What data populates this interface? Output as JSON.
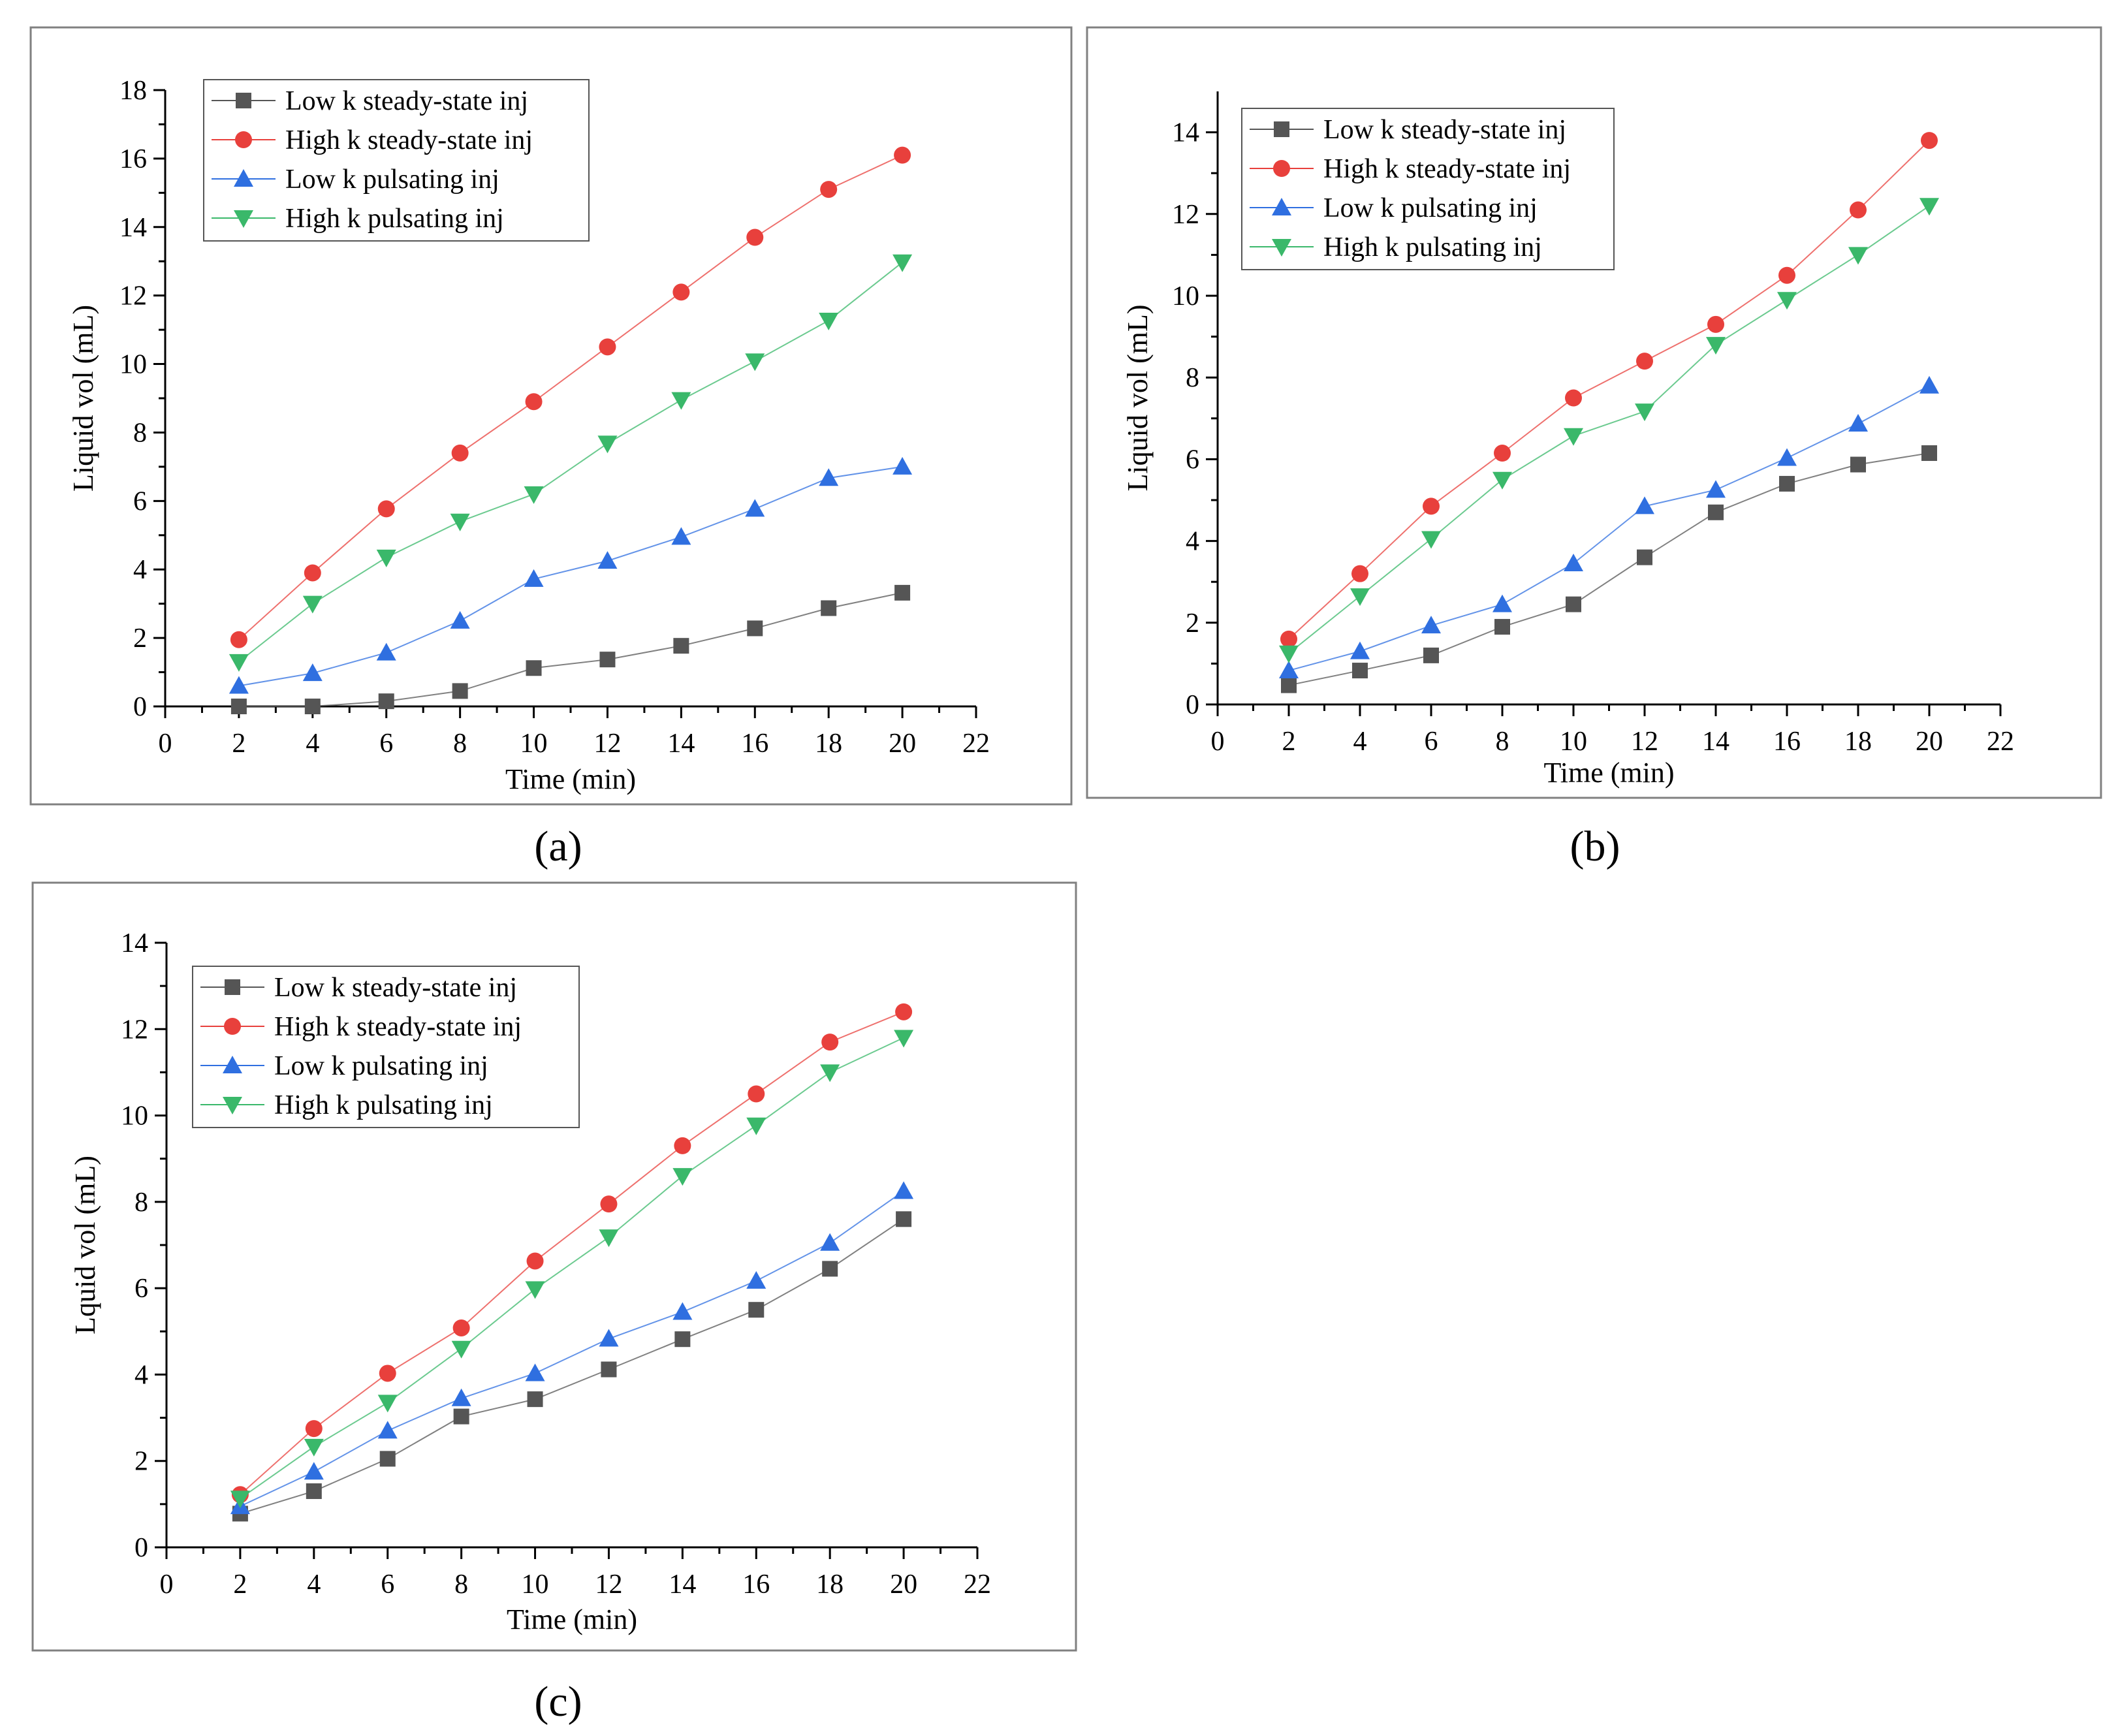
{
  "figure_labels": {
    "a": "(a)",
    "b": "(b)",
    "c": "(c)"
  },
  "colors": {
    "low_ss": "#555555",
    "high_ss": "#e8403c",
    "low_p": "#2f6fe0",
    "high_p": "#3ab86a"
  },
  "chart_data": [
    {
      "id": "a",
      "type": "line",
      "xlabel": "Time (min)",
      "ylabel": "Liquid vol (mL)",
      "xlim": [
        0,
        22
      ],
      "ylim": [
        0,
        18
      ],
      "xticks": [
        0,
        2,
        4,
        6,
        8,
        10,
        12,
        14,
        16,
        18,
        20,
        22
      ],
      "yticks": [
        0,
        2,
        4,
        6,
        8,
        10,
        12,
        14,
        16,
        18
      ],
      "x": [
        2,
        4,
        6,
        8,
        10,
        12,
        14,
        16,
        18,
        20
      ],
      "series": [
        {
          "name": "Low k steady-state inj",
          "marker": "square",
          "color": "#555555",
          "values": [
            0,
            0,
            0.15,
            0.45,
            1.12,
            1.37,
            1.77,
            2.28,
            2.87,
            3.32
          ]
        },
        {
          "name": "High k steady-state inj",
          "marker": "circle",
          "color": "#e8403c",
          "values": [
            1.95,
            3.9,
            5.77,
            7.4,
            8.9,
            10.5,
            12.1,
            13.7,
            15.1,
            16.1
          ]
        },
        {
          "name": "Low k pulsating inj",
          "marker": "triangle-up",
          "color": "#2f6fe0",
          "values": [
            0.6,
            0.97,
            1.57,
            2.5,
            3.72,
            4.25,
            4.95,
            5.77,
            6.67,
            7.0
          ]
        },
        {
          "name": "High k pulsating inj",
          "marker": "triangle-down",
          "color": "#3ab86a",
          "values": [
            1.3,
            3.0,
            4.35,
            5.4,
            6.2,
            7.68,
            8.95,
            10.08,
            11.27,
            12.97
          ]
        }
      ]
    },
    {
      "id": "b",
      "type": "line",
      "xlabel": "Time (min)",
      "ylabel": "Liquid vol (mL)",
      "xlim": [
        0,
        22
      ],
      "ylim": [
        0,
        15
      ],
      "xticks": [
        0,
        2,
        4,
        6,
        8,
        10,
        12,
        14,
        16,
        18,
        20,
        22
      ],
      "yticks": [
        0,
        2,
        4,
        6,
        8,
        10,
        12,
        14
      ],
      "x": [
        2,
        4,
        6,
        8,
        10,
        12,
        14,
        16,
        18,
        20
      ],
      "series": [
        {
          "name": "Low k steady-state inj",
          "marker": "square",
          "color": "#555555",
          "values": [
            0.47,
            0.83,
            1.2,
            1.9,
            2.45,
            3.6,
            4.7,
            5.4,
            5.87,
            6.15
          ]
        },
        {
          "name": "High k steady-state inj",
          "marker": "circle",
          "color": "#e8403c",
          "values": [
            1.6,
            3.2,
            4.85,
            6.15,
            7.5,
            8.4,
            9.3,
            10.5,
            12.1,
            13.8
          ]
        },
        {
          "name": "Low k pulsating inj",
          "marker": "triangle-up",
          "color": "#2f6fe0",
          "values": [
            0.83,
            1.3,
            1.93,
            2.45,
            3.45,
            4.85,
            5.25,
            6.03,
            6.87,
            7.8
          ]
        },
        {
          "name": "High k pulsating inj",
          "marker": "triangle-down",
          "color": "#3ab86a",
          "values": [
            1.25,
            2.65,
            4.05,
            5.5,
            6.57,
            7.17,
            8.8,
            9.9,
            11.0,
            12.2
          ]
        }
      ]
    },
    {
      "id": "c",
      "type": "line",
      "xlabel": "Time (min)",
      "ylabel": "Lquid vol (mL)",
      "xlim": [
        0,
        22
      ],
      "ylim": [
        0,
        14
      ],
      "xticks": [
        0,
        2,
        4,
        6,
        8,
        10,
        12,
        14,
        16,
        18,
        20,
        22
      ],
      "yticks": [
        0,
        2,
        4,
        6,
        8,
        10,
        12,
        14
      ],
      "x": [
        2,
        4,
        6,
        8,
        10,
        12,
        14,
        16,
        18,
        20
      ],
      "series": [
        {
          "name": "Low k steady-state inj",
          "marker": "square",
          "color": "#555555",
          "values": [
            0.78,
            1.3,
            2.05,
            3.03,
            3.43,
            4.12,
            4.82,
            5.5,
            6.45,
            7.6
          ]
        },
        {
          "name": "High k steady-state inj",
          "marker": "circle",
          "color": "#e8403c",
          "values": [
            1.22,
            2.75,
            4.03,
            5.08,
            6.63,
            7.95,
            9.3,
            10.5,
            11.7,
            12.4
          ]
        },
        {
          "name": "Low k pulsating inj",
          "marker": "triangle-up",
          "color": "#2f6fe0",
          "values": [
            0.95,
            1.75,
            2.7,
            3.45,
            4.03,
            4.83,
            5.45,
            6.17,
            7.05,
            8.25
          ]
        },
        {
          "name": "High k pulsating inj",
          "marker": "triangle-down",
          "color": "#3ab86a",
          "values": [
            1.13,
            2.33,
            3.35,
            4.6,
            5.98,
            7.18,
            8.6,
            9.77,
            11.0,
            11.8
          ]
        }
      ]
    }
  ]
}
